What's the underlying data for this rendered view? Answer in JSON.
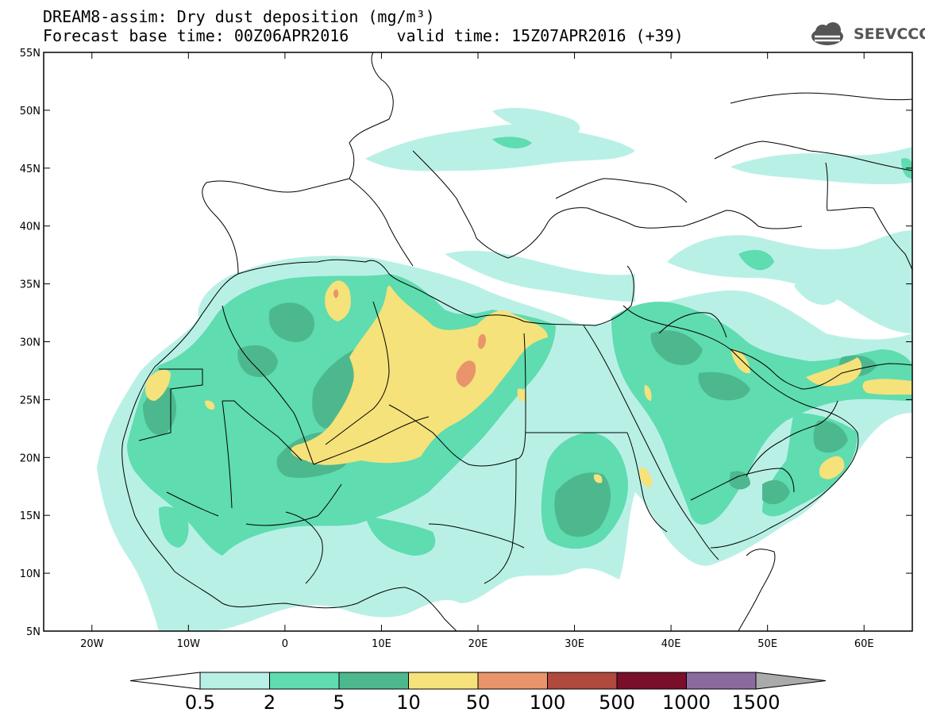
{
  "header": {
    "title_line1": "DREAM8-assim: Dry dust deposition (mg/m³)",
    "title_line2": "Forecast base time: 00Z06APR2016     valid time: 15Z07APR2016 (+39)",
    "logo_text": "SEEVCCC"
  },
  "map": {
    "lon_range": [
      -25,
      65
    ],
    "lat_range": [
      5,
      55
    ],
    "lat_ticks": [
      "55N",
      "50N",
      "45N",
      "40N",
      "35N",
      "30N",
      "25N",
      "20N",
      "15N",
      "10N",
      "5N"
    ],
    "lon_ticks": [
      "20W",
      "10W",
      "0",
      "10E",
      "20E",
      "30E",
      "40E",
      "50E",
      "60E"
    ]
  },
  "legend": {
    "levels": [
      "0.5",
      "2",
      "5",
      "10",
      "50",
      "100",
      "500",
      "1000",
      "1500"
    ],
    "colors": [
      "#b9f0e6",
      "#5fdcb0",
      "#4db88e",
      "#f5e27a",
      "#e9946a",
      "#b0493e",
      "#7a0f29",
      "#8b6b9e"
    ],
    "under_color": "#ffffff",
    "over_color": "#aaaaaa"
  },
  "colors": {
    "c1": "#b9f0e6",
    "c2": "#5fdcb0",
    "c3": "#4db88e",
    "c4": "#f5e27a",
    "c5": "#e9946a"
  }
}
